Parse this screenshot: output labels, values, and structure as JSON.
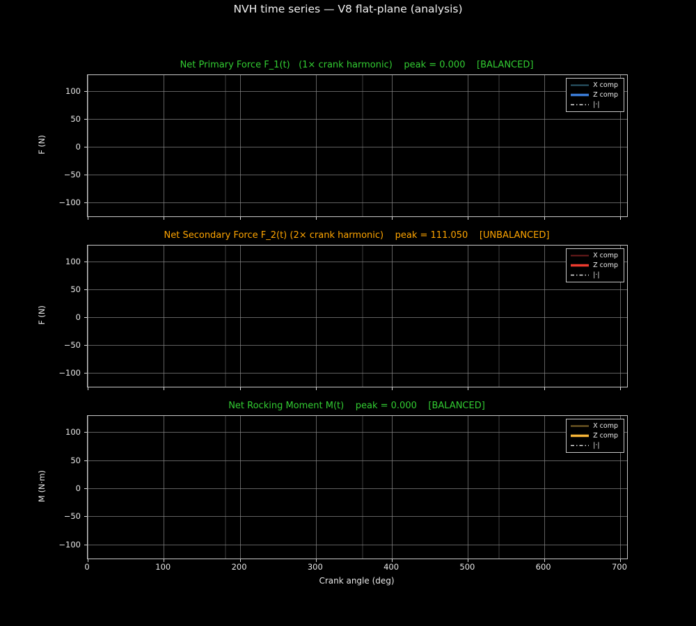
{
  "figure": {
    "title": "NVH time series — V8 flat-plane (analysis)",
    "background_color": "#000000",
    "text_color": "#e8e8e8",
    "balanced_color": "#32cd32",
    "unbalanced_color": "#ffa500"
  },
  "axis": {
    "xlabel": "Crank angle (deg)",
    "xticks": [
      "0",
      "100",
      "200",
      "300",
      "400",
      "500",
      "600",
      "700"
    ]
  },
  "subplots": [
    {
      "name": "primary-force",
      "title": "Net Primary Force F_1(t)   (1× crank harmonic)    peak = 0.000    [BALANCED]",
      "title_color": "#32cd32",
      "peak": "0.000",
      "status": "[BALANCED]",
      "ylabel": "F (N)",
      "yticks": [
        "100",
        "50",
        "0",
        "−50",
        "−100"
      ],
      "legend": [
        {
          "label": "X comp",
          "color": "#2d5b6e",
          "style": "solid"
        },
        {
          "label": "Z comp",
          "color": "#3b7dd8",
          "style": "solid"
        },
        {
          "label": "|·|",
          "color": "#e8e8e8",
          "style": "dashdot"
        }
      ]
    },
    {
      "name": "secondary-force",
      "title": "Net Secondary Force F_2(t) (2× crank harmonic)    peak = 111.050    [UNBALANCED]",
      "title_color": "#ffa500",
      "peak": "111.050",
      "status": "[UNBALANCED]",
      "ylabel": "F (N)",
      "yticks": [
        "100",
        "50",
        "0",
        "−50",
        "−100"
      ],
      "legend": [
        {
          "label": "X comp",
          "color": "#6f1d1d",
          "style": "solid"
        },
        {
          "label": "Z comp",
          "color": "#ee3b2e",
          "style": "solid"
        },
        {
          "label": "|·|",
          "color": "#e8e8e8",
          "style": "dashdot"
        }
      ]
    },
    {
      "name": "rocking-moment",
      "title": "Net Rocking Moment M(t)    peak = 0.000    [BALANCED]",
      "title_color": "#32cd32",
      "peak": "0.000",
      "status": "[BALANCED]",
      "ylabel": "M (N·m)",
      "yticks": [
        "100",
        "50",
        "0",
        "−50",
        "−100"
      ],
      "legend": [
        {
          "label": "X comp",
          "color": "#84682a",
          "style": "solid"
        },
        {
          "label": "Z comp",
          "color": "#f7b538",
          "style": "solid"
        },
        {
          "label": "|·|",
          "color": "#e8e8e8",
          "style": "dashdot"
        }
      ]
    }
  ],
  "chart_data": [
    {
      "type": "line",
      "title": "Net Primary Force F_1(t) (1× crank harmonic)",
      "xlabel": "Crank angle (deg)",
      "ylabel": "F (N)",
      "xlim": [
        0,
        710
      ],
      "ylim": [
        -125,
        129
      ],
      "xticks": [
        0,
        100,
        200,
        300,
        400,
        500,
        600,
        700
      ],
      "yticks": [
        -100,
        -50,
        0,
        50,
        100
      ],
      "grid": true,
      "legend_position": "upper right",
      "series": [
        {
          "name": "X comp",
          "values": []
        },
        {
          "name": "Z comp",
          "values": []
        },
        {
          "name": "|·|",
          "values": []
        }
      ],
      "vlines_x_deg": [
        180,
        360,
        540
      ],
      "peak": 0.0,
      "status": "BALANCED",
      "note": "no data curves visible in plot area; only grid and faint 180°-interval marker lines rendered"
    },
    {
      "type": "line",
      "title": "Net Secondary Force F_2(t) (2× crank harmonic)",
      "xlabel": "Crank angle (deg)",
      "ylabel": "F (N)",
      "xlim": [
        0,
        710
      ],
      "ylim": [
        -125,
        129
      ],
      "xticks": [
        0,
        100,
        200,
        300,
        400,
        500,
        600,
        700
      ],
      "yticks": [
        -100,
        -50,
        0,
        50,
        100
      ],
      "grid": true,
      "legend_position": "upper right",
      "series": [
        {
          "name": "X comp",
          "values": []
        },
        {
          "name": "Z comp",
          "values": []
        },
        {
          "name": "|·|",
          "values": []
        }
      ],
      "vlines_x_deg": [
        180,
        360,
        540
      ],
      "peak": 111.05,
      "status": "UNBALANCED",
      "note": "peak value from title; no curve pixels visible in plot area"
    },
    {
      "type": "line",
      "title": "Net Rocking Moment M(t)",
      "xlabel": "Crank angle (deg)",
      "ylabel": "M (N·m)",
      "xlim": [
        0,
        710
      ],
      "ylim": [
        -125,
        129
      ],
      "xticks": [
        0,
        100,
        200,
        300,
        400,
        500,
        600,
        700
      ],
      "yticks": [
        -100,
        -50,
        0,
        50,
        100
      ],
      "grid": true,
      "legend_position": "upper right",
      "series": [
        {
          "name": "X comp",
          "values": []
        },
        {
          "name": "Z comp",
          "values": []
        },
        {
          "name": "|·|",
          "values": []
        }
      ],
      "vlines_x_deg": [
        180,
        360,
        540
      ],
      "peak": 0.0,
      "status": "BALANCED",
      "note": "no data curves visible in plot area"
    }
  ]
}
